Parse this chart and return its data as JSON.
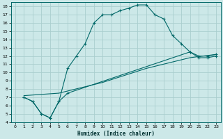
{
  "xlabel": "Humidex (Indice chaleur)",
  "xlim": [
    -0.5,
    23.5
  ],
  "ylim": [
    4,
    18.5
  ],
  "yticks": [
    4,
    5,
    6,
    7,
    8,
    9,
    10,
    11,
    12,
    13,
    14,
    15,
    16,
    17,
    18
  ],
  "xticks": [
    0,
    1,
    2,
    3,
    4,
    5,
    6,
    7,
    8,
    9,
    10,
    11,
    12,
    13,
    14,
    15,
    16,
    17,
    18,
    19,
    20,
    21,
    22,
    23
  ],
  "bg_color": "#cce8e8",
  "line_color": "#006868",
  "grid_color": "#aacece",
  "line1_x": [
    1,
    2,
    3,
    4,
    5,
    6,
    7,
    8,
    9,
    10,
    11,
    12,
    13,
    14,
    15,
    16,
    17,
    18,
    19,
    20,
    21,
    22,
    23
  ],
  "line1_y": [
    7.0,
    6.5,
    5.0,
    4.5,
    6.5,
    10.5,
    12.0,
    13.5,
    16.0,
    17.0,
    17.0,
    17.5,
    17.8,
    18.2,
    18.2,
    17.0,
    16.5,
    14.5,
    13.5,
    12.5,
    11.8,
    11.8,
    12.0
  ],
  "line2_x": [
    1,
    2,
    3,
    4,
    5,
    6,
    20,
    21,
    22,
    23
  ],
  "line2_y": [
    7.0,
    6.5,
    5.0,
    4.5,
    6.5,
    7.5,
    12.5,
    12.0,
    12.0,
    12.2
  ],
  "line3_x": [
    1,
    5,
    10,
    15,
    20,
    23
  ],
  "line3_y": [
    7.2,
    7.5,
    8.8,
    10.5,
    11.8,
    12.2
  ]
}
